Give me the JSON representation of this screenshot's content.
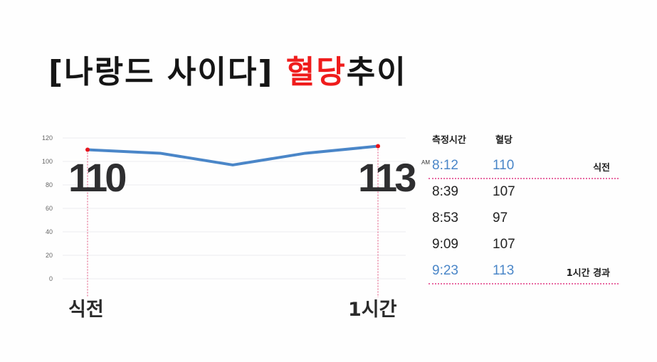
{
  "title": {
    "part1": "[나랑드 사이다] ",
    "highlight": "혈당",
    "part2": "추이",
    "highlight_color": "#ef1c1c"
  },
  "chart_data": {
    "type": "line",
    "title": "[나랑드 사이다] 혈당추이",
    "x": [
      "8:12",
      "8:39",
      "8:53",
      "9:09",
      "9:23"
    ],
    "series": [
      {
        "name": "혈당",
        "values": [
          110,
          107,
          97,
          107,
          113
        ],
        "color": "#4a86c8"
      }
    ],
    "yticks": [
      0,
      20,
      40,
      60,
      80,
      100,
      120
    ],
    "ylim": [
      0,
      120
    ],
    "grid": true,
    "xlabel": "",
    "ylabel": "",
    "annotations": [
      {
        "x": "8:12",
        "value": "110",
        "label": "식전"
      },
      {
        "x": "9:23",
        "value": "113",
        "label": "1시간"
      }
    ],
    "marker_color": "#e8141c"
  },
  "annotations": {
    "start_value": "110",
    "end_value": "113",
    "start_label": "식전",
    "end_label": "1시간"
  },
  "table": {
    "headers": {
      "time": "측정시간",
      "glucose": "혈당"
    },
    "am_label": "AM",
    "rows": [
      {
        "time": "8:12",
        "value": "110",
        "note": "식전",
        "highlight": true
      },
      {
        "time": "8:39",
        "value": "107",
        "note": "",
        "highlight": false
      },
      {
        "time": "8:53",
        "value": "97",
        "note": "",
        "highlight": false
      },
      {
        "time": "9:09",
        "value": "107",
        "note": "",
        "highlight": false
      },
      {
        "time": "9:23",
        "value": "113",
        "note": "1시간 경과",
        "highlight": true
      }
    ]
  }
}
